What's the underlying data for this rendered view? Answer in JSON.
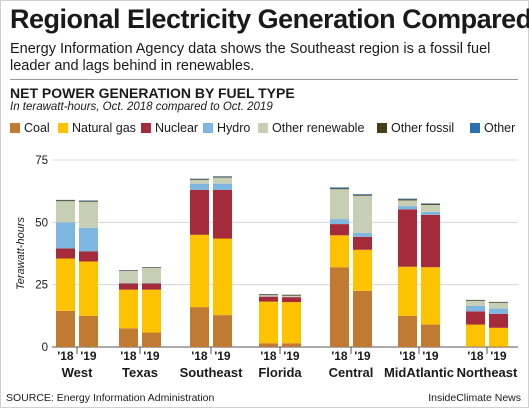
{
  "header": {
    "title": "Regional Electricity Generation Compared",
    "subtitle": "Energy Information Agency data shows the Southeast region is a fossil fuel leader and lags behind in renewables."
  },
  "chart_data": {
    "type": "bar",
    "stacked": true,
    "title": "NET POWER GENERATION BY FUEL TYPE",
    "subtitle": "In terawatt-hours, Oct. 2018 compared to Oct. 2019",
    "ylabel": "Terawatt-hours",
    "xlabel": "",
    "ylim": [
      0,
      75
    ],
    "yticks": [
      0,
      25,
      50,
      75
    ],
    "grid": true,
    "legend_position": "top",
    "regions": [
      "West",
      "Texas",
      "Southeast",
      "Florida",
      "Central",
      "MidAtlantic",
      "Northeast"
    ],
    "years": [
      "'18",
      "'19"
    ],
    "categories": [
      "West '18",
      "West '19",
      "Texas '18",
      "Texas '19",
      "Southeast '18",
      "Southeast '19",
      "Florida '18",
      "Florida '19",
      "Central '18",
      "Central '19",
      "MidAtlantic '18",
      "MidAtlantic '19",
      "Northeast '18",
      "Northeast '19"
    ],
    "series": [
      {
        "name": "Coal",
        "color": "#c07a32",
        "values": [
          14.5,
          12.5,
          7.5,
          5.8,
          16.0,
          12.8,
          1.5,
          1.5,
          32.0,
          22.5,
          12.5,
          9.0,
          0.3,
          0.2
        ]
      },
      {
        "name": "Natural gas",
        "color": "#fdc300",
        "values": [
          21.0,
          21.8,
          15.5,
          17.2,
          29.0,
          30.7,
          16.7,
          16.5,
          12.8,
          16.5,
          19.7,
          23.0,
          8.7,
          7.5
        ]
      },
      {
        "name": "Nuclear",
        "color": "#a62b3a",
        "values": [
          4.0,
          4.0,
          2.5,
          2.5,
          18.0,
          19.5,
          2.0,
          2.0,
          4.5,
          5.2,
          23.0,
          21.0,
          5.3,
          5.6
        ]
      },
      {
        "name": "Hydro",
        "color": "#7db6e0",
        "values": [
          10.5,
          9.5,
          0.2,
          0.2,
          2.5,
          2.5,
          0.1,
          0.1,
          2.0,
          1.5,
          1.3,
          1.2,
          2.2,
          2.1
        ]
      },
      {
        "name": "Other renewable",
        "color": "#c6cfb4",
        "values": [
          8.5,
          10.5,
          4.8,
          6.0,
          1.5,
          2.5,
          0.5,
          0.5,
          12.0,
          15.0,
          2.3,
          2.8,
          2.0,
          2.3
        ]
      },
      {
        "name": "Other fossil",
        "color": "#4a3d14",
        "values": [
          0.3,
          0.3,
          0.2,
          0.2,
          0.3,
          0.3,
          0.3,
          0.3,
          0.3,
          0.3,
          0.4,
          0.4,
          0.3,
          0.3
        ]
      },
      {
        "name": "Other",
        "color": "#2c6fb0",
        "values": [
          0.2,
          0.2,
          0.1,
          0.1,
          0.2,
          0.2,
          0.1,
          0.1,
          0.4,
          0.3,
          0.3,
          0.2,
          0.1,
          0.1
        ]
      }
    ]
  },
  "footer": {
    "source": "SOURCE: Energy Information Administration",
    "credit": "InsideClimate News"
  }
}
